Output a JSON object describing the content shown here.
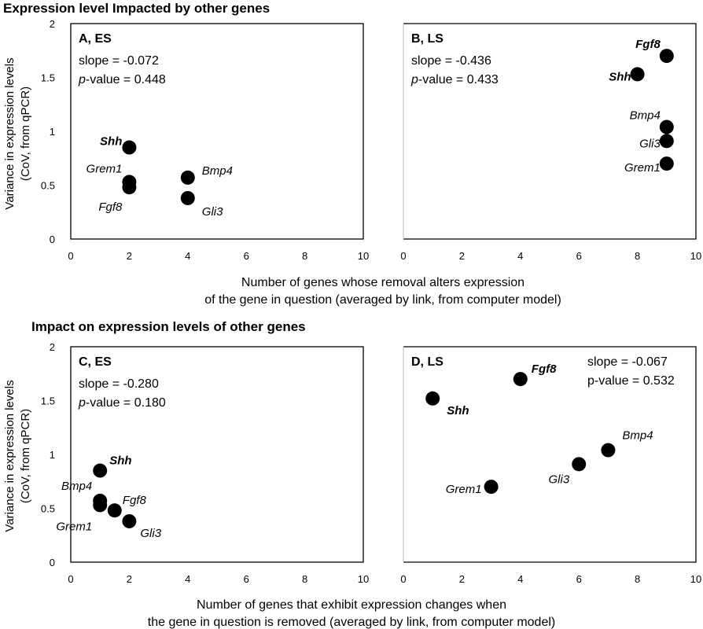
{
  "sections": [
    {
      "title": "Expression level Impacted by other genes",
      "xlabel_lines": [
        "Number of genes whose removal alters expression",
        "of the gene in question (averaged by link, from computer model)"
      ]
    },
    {
      "title": "Impact on expression levels of other genes",
      "xlabel_lines": [
        "Number of genes that exhibit expression changes when",
        "the gene in question is removed (averaged by link, from computer model)"
      ]
    }
  ],
  "ylabel_lines": [
    "Variance in expression levels",
    "(CoV, from qPCR)"
  ],
  "chart_data": [
    {
      "type": "scatter",
      "panel": "A, ES",
      "slope_text": "slope = -0.072",
      "p_prefix": "p",
      "p_text": "-value = 0.448",
      "xlim": [
        0,
        10
      ],
      "ylim": [
        0,
        2
      ],
      "xticks": [
        "0",
        "2",
        "4",
        "6",
        "8",
        "10"
      ],
      "yticks": [
        "0",
        "0.5",
        "1",
        "1.5",
        "2"
      ],
      "points": [
        {
          "label": "Shh",
          "x": 2,
          "y": 0.85,
          "bold": true
        },
        {
          "label": "Grem1",
          "x": 2,
          "y": 0.53,
          "bold": false
        },
        {
          "label": "Fgf8",
          "x": 2,
          "y": 0.48,
          "bold": false
        },
        {
          "label": "Bmp4",
          "x": 4,
          "y": 0.57,
          "bold": false
        },
        {
          "label": "Gli3",
          "x": 4,
          "y": 0.38,
          "bold": false
        }
      ]
    },
    {
      "type": "scatter",
      "panel": "B, LS",
      "slope_text": "slope = -0.436",
      "p_prefix": "p",
      "p_text": "-value = 0.433",
      "xlim": [
        0,
        10
      ],
      "ylim": [
        0,
        2
      ],
      "xticks": [
        "0",
        "2",
        "4",
        "6",
        "8",
        "10"
      ],
      "yticks": [],
      "points": [
        {
          "label": "Fgf8",
          "x": 9,
          "y": 1.7,
          "bold": true
        },
        {
          "label": "Shh",
          "x": 8,
          "y": 1.53,
          "bold": true
        },
        {
          "label": "Bmp4",
          "x": 9,
          "y": 1.04,
          "bold": false
        },
        {
          "label": "Gli3",
          "x": 9,
          "y": 0.91,
          "bold": false
        },
        {
          "label": "Grem1",
          "x": 9,
          "y": 0.7,
          "bold": false
        }
      ]
    },
    {
      "type": "scatter",
      "panel": "C, ES",
      "slope_text": "slope = -0.280",
      "p_prefix": "p",
      "p_text": "-value = 0.180",
      "xlim": [
        0,
        10
      ],
      "ylim": [
        0,
        2
      ],
      "xticks": [
        "0",
        "2",
        "4",
        "6",
        "8",
        "10"
      ],
      "yticks": [
        "0",
        "0.5",
        "1",
        "1.5",
        "2"
      ],
      "points": [
        {
          "label": "Shh",
          "x": 1,
          "y": 0.85,
          "bold": true
        },
        {
          "label": "Bmp4",
          "x": 1,
          "y": 0.57,
          "bold": false
        },
        {
          "label": "Grem1",
          "x": 1,
          "y": 0.53,
          "bold": false
        },
        {
          "label": "Fgf8",
          "x": 1.5,
          "y": 0.48,
          "bold": false
        },
        {
          "label": "Gli3",
          "x": 2,
          "y": 0.38,
          "bold": false
        }
      ]
    },
    {
      "type": "scatter",
      "panel": "D, LS",
      "slope_text": "slope = -0.067",
      "p_prefix": "",
      "p_text": "p-value = 0.532",
      "xlim": [
        0,
        10
      ],
      "ylim": [
        0,
        2
      ],
      "xticks": [
        "0",
        "2",
        "4",
        "6",
        "8",
        "10"
      ],
      "yticks": [],
      "points": [
        {
          "label": "Shh",
          "x": 1,
          "y": 1.52,
          "bold": true
        },
        {
          "label": "Fgf8",
          "x": 4,
          "y": 1.7,
          "bold": true
        },
        {
          "label": "Grem1",
          "x": 3,
          "y": 0.7,
          "bold": false
        },
        {
          "label": "Gli3",
          "x": 6,
          "y": 0.91,
          "bold": false
        },
        {
          "label": "Bmp4",
          "x": 7,
          "y": 1.04,
          "bold": false
        }
      ]
    }
  ]
}
